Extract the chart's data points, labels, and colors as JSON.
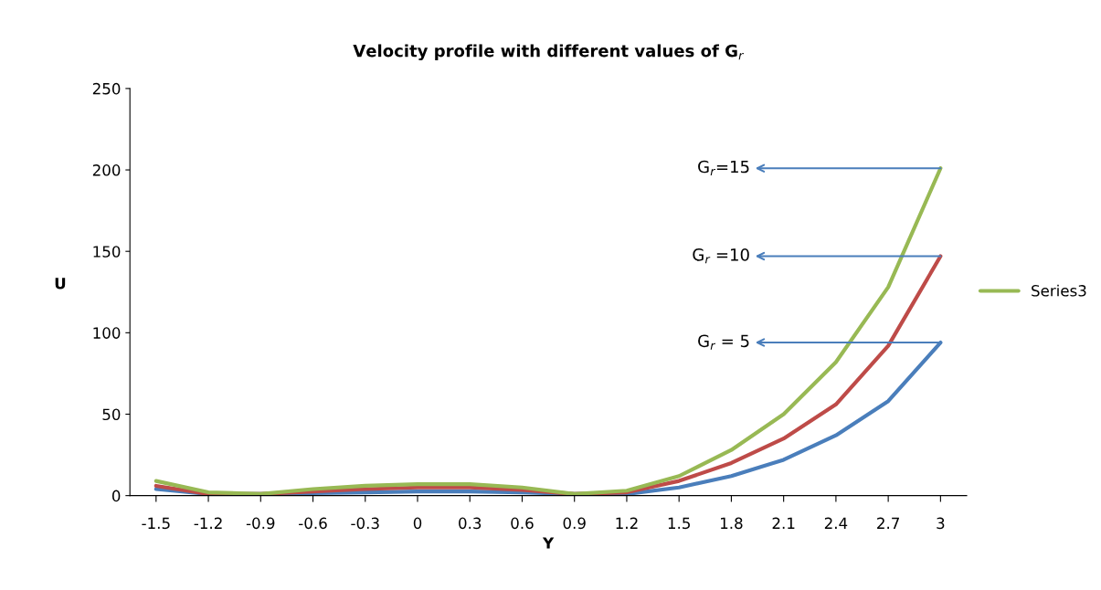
{
  "chart_data": {
    "type": "line",
    "title": "Velocity profile with different values of G$_{r}$",
    "xlabel": "Y",
    "ylabel": "U",
    "categories": [
      "-1.5",
      "-1.2",
      "-0.9",
      "-0.6",
      "-0.3",
      "0",
      "0.3",
      "0.6",
      "0.9",
      "1.2",
      "1.5",
      "1.8",
      "2.1",
      "2.4",
      "2.7",
      "3"
    ],
    "series": [
      {
        "color": "#4a7ebb",
        "values": [
          4,
          1,
          1,
          1.5,
          2,
          2.5,
          2.5,
          2,
          1,
          1,
          5,
          12,
          22,
          37,
          58,
          94
        ]
      },
      {
        "color": "#be4b48",
        "values": [
          6,
          1,
          1,
          2.5,
          4,
          5,
          5,
          3.5,
          1,
          2,
          9,
          20,
          35,
          56,
          92,
          147
        ]
      },
      {
        "name": "Series3",
        "color": "#98b954",
        "values": [
          9,
          2,
          1,
          4,
          6,
          7,
          7,
          5,
          1,
          3,
          12,
          28,
          50,
          82,
          128,
          201
        ]
      }
    ],
    "ylim": [
      0,
      250
    ],
    "yticks": [
      0,
      50,
      100,
      150,
      200,
      250
    ],
    "grid": false,
    "legend": "right",
    "marker": "none",
    "line_style": "solid",
    "annotations": [
      {
        "text": "G$_{r}$=15",
        "x": "3",
        "y": 201
      },
      {
        "text": "G$_{r}$ =10",
        "x": "3",
        "y": 147
      },
      {
        "text": "G$_{r}$ = 5",
        "x": "3",
        "y": 94
      }
    ]
  }
}
